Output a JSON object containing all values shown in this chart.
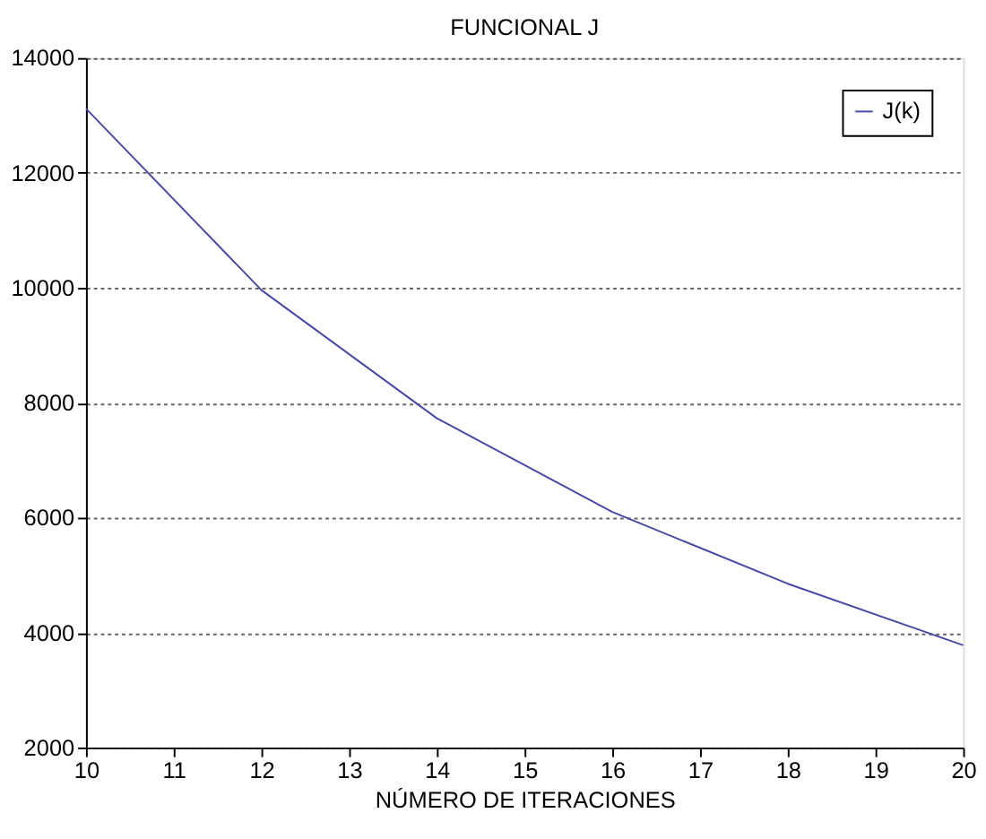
{
  "chart_data": {
    "type": "line",
    "title": "FUNCIONAL J",
    "xlabel": "NÚMERO DE ITERACIONES",
    "x": [
      10,
      12,
      14,
      16,
      18,
      20
    ],
    "series": [
      {
        "name": "J(k)",
        "color": "#4848a8",
        "values": [
          13120,
          9960,
          7730,
          6100,
          4850,
          3780
        ]
      }
    ],
    "xlim": [
      10,
      20
    ],
    "xticks": [
      10,
      11,
      12,
      13,
      14,
      15,
      16,
      17,
      18,
      19,
      20
    ],
    "ylim": [
      2000,
      14000
    ],
    "yticks": [
      2000,
      4000,
      6000,
      8000,
      10000,
      12000,
      14000
    ],
    "grid": "y",
    "legend": "top right",
    "marker": "none",
    "line_style": "solid"
  }
}
